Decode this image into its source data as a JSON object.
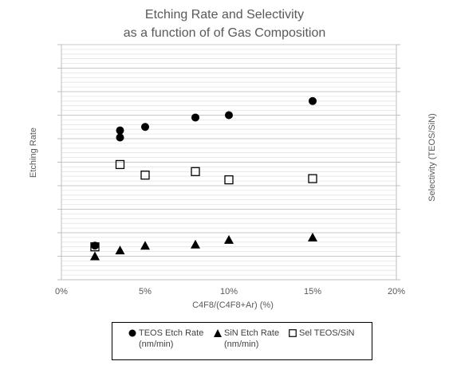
{
  "chart_data": {
    "type": "scatter",
    "title": "Etching Rate and Selectivity",
    "subtitle": "as a function of  of  Gas Composition",
    "xlabel": "C4F8/(C4F8+Ar) (%)",
    "ylabel": "Etching Rate",
    "y2label": "Selectivity (TEOS/SiN)",
    "xlim": [
      0,
      20
    ],
    "xticks": [
      "0%",
      "5%",
      "10%",
      "15%",
      "20%"
    ],
    "xtick_values": [
      0,
      5,
      10,
      15,
      20
    ],
    "ylim": [
      0,
      10
    ],
    "grid": true,
    "legend_position": "bottom",
    "series": [
      {
        "name": "TEOS Etch Rate (nm/min)",
        "marker": "circle-filled",
        "color": "#000000",
        "points": [
          [
            2,
            1.45
          ],
          [
            3.5,
            6.05
          ],
          [
            3.5,
            6.35
          ],
          [
            5,
            6.5
          ],
          [
            8,
            6.9
          ],
          [
            10,
            7.0
          ],
          [
            15,
            7.6
          ]
        ]
      },
      {
        "name": "SiN Etch Rate (nm/min)",
        "marker": "triangle-filled",
        "color": "#000000",
        "points": [
          [
            2,
            1.0
          ],
          [
            3.5,
            1.25
          ],
          [
            5,
            1.45
          ],
          [
            8,
            1.5
          ],
          [
            10,
            1.7
          ],
          [
            15,
            1.8
          ]
        ]
      },
      {
        "name": "Sel  TEOS/SiN",
        "marker": "square-open",
        "color": "#000000",
        "points": [
          [
            2,
            1.4
          ],
          [
            3.5,
            4.9
          ],
          [
            5,
            4.45
          ],
          [
            8,
            4.6
          ],
          [
            10,
            4.25
          ],
          [
            15,
            4.3
          ]
        ]
      }
    ]
  },
  "legend": [
    {
      "line1": "TEOS Etch Rate",
      "line2": "(nm/min)"
    },
    {
      "line1": "SiN Etch Rate",
      "line2": "(nm/min)"
    },
    {
      "line1": "Sel  TEOS/SiN",
      "line2": ""
    }
  ]
}
